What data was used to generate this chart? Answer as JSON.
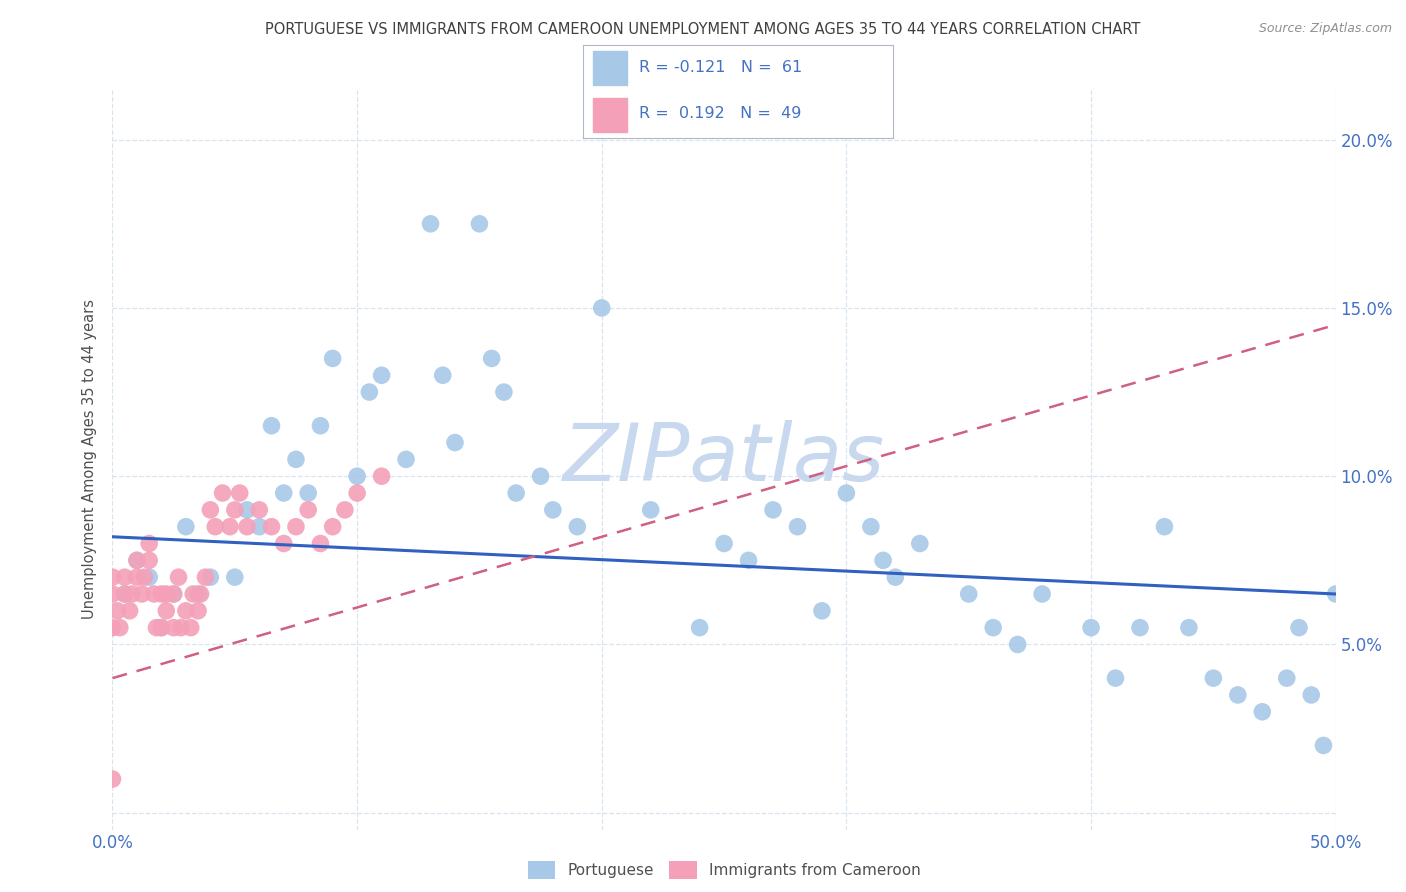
{
  "title": "PORTUGUESE VS IMMIGRANTS FROM CAMEROON UNEMPLOYMENT AMONG AGES 35 TO 44 YEARS CORRELATION CHART",
  "source": "Source: ZipAtlas.com",
  "ylabel": "Unemployment Among Ages 35 to 44 years",
  "xlim": [
    0.0,
    0.5
  ],
  "ylim": [
    -0.005,
    0.215
  ],
  "xticks": [
    0.0,
    0.1,
    0.2,
    0.3,
    0.4,
    0.5
  ],
  "yticks": [
    0.0,
    0.05,
    0.1,
    0.15,
    0.2
  ],
  "blue_color": "#a8c8e8",
  "pink_color": "#f4a0b8",
  "trendline_blue_color": "#3060c0",
  "trendline_pink_color": "#d06080",
  "watermark_color": "#c8d8ee",
  "title_color": "#404040",
  "source_color": "#909090",
  "axis_color": "#4472c4",
  "grid_color": "#d8e4f0",
  "blue_points_x": [
    0.005,
    0.01,
    0.015,
    0.02,
    0.025,
    0.03,
    0.035,
    0.04,
    0.05,
    0.055,
    0.06,
    0.065,
    0.07,
    0.075,
    0.08,
    0.085,
    0.09,
    0.1,
    0.105,
    0.11,
    0.12,
    0.13,
    0.135,
    0.14,
    0.15,
    0.155,
    0.16,
    0.165,
    0.175,
    0.18,
    0.19,
    0.2,
    0.22,
    0.24,
    0.25,
    0.26,
    0.27,
    0.28,
    0.29,
    0.3,
    0.31,
    0.315,
    0.32,
    0.33,
    0.35,
    0.36,
    0.37,
    0.38,
    0.4,
    0.41,
    0.42,
    0.43,
    0.44,
    0.45,
    0.46,
    0.47,
    0.48,
    0.485,
    0.49,
    0.495,
    0.5
  ],
  "blue_points_y": [
    0.065,
    0.075,
    0.07,
    0.055,
    0.065,
    0.085,
    0.065,
    0.07,
    0.07,
    0.09,
    0.085,
    0.115,
    0.095,
    0.105,
    0.095,
    0.115,
    0.135,
    0.1,
    0.125,
    0.13,
    0.105,
    0.175,
    0.13,
    0.11,
    0.175,
    0.135,
    0.125,
    0.095,
    0.1,
    0.09,
    0.085,
    0.15,
    0.09,
    0.055,
    0.08,
    0.075,
    0.09,
    0.085,
    0.06,
    0.095,
    0.085,
    0.075,
    0.07,
    0.08,
    0.065,
    0.055,
    0.05,
    0.065,
    0.055,
    0.04,
    0.055,
    0.085,
    0.055,
    0.04,
    0.035,
    0.03,
    0.04,
    0.055,
    0.035,
    0.02,
    0.065
  ],
  "pink_points_x": [
    0.0,
    0.0,
    0.0,
    0.002,
    0.003,
    0.005,
    0.005,
    0.007,
    0.008,
    0.01,
    0.01,
    0.012,
    0.013,
    0.015,
    0.015,
    0.017,
    0.018,
    0.02,
    0.02,
    0.022,
    0.022,
    0.025,
    0.025,
    0.027,
    0.028,
    0.03,
    0.032,
    0.033,
    0.035,
    0.036,
    0.038,
    0.04,
    0.042,
    0.045,
    0.048,
    0.05,
    0.052,
    0.055,
    0.06,
    0.065,
    0.07,
    0.075,
    0.08,
    0.085,
    0.09,
    0.095,
    0.1,
    0.11,
    0.0
  ],
  "pink_points_y": [
    0.055,
    0.065,
    0.07,
    0.06,
    0.055,
    0.065,
    0.07,
    0.06,
    0.065,
    0.07,
    0.075,
    0.065,
    0.07,
    0.075,
    0.08,
    0.065,
    0.055,
    0.065,
    0.055,
    0.06,
    0.065,
    0.055,
    0.065,
    0.07,
    0.055,
    0.06,
    0.055,
    0.065,
    0.06,
    0.065,
    0.07,
    0.09,
    0.085,
    0.095,
    0.085,
    0.09,
    0.095,
    0.085,
    0.09,
    0.085,
    0.08,
    0.085,
    0.09,
    0.08,
    0.085,
    0.09,
    0.095,
    0.1,
    0.01
  ],
  "blue_trend_x": [
    0.0,
    0.5
  ],
  "blue_trend_y": [
    0.082,
    0.065
  ],
  "pink_trend_x": [
    0.0,
    0.5
  ],
  "pink_trend_y": [
    0.04,
    0.145
  ]
}
